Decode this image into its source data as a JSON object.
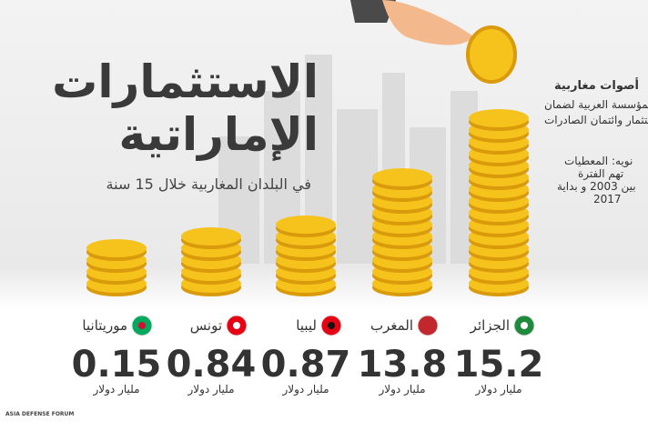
{
  "header": {
    "title_lines": [
      "الاستثمارات",
      "الإماراتية"
    ],
    "subtitle": "في البلدان المغاربية خلال 15 سنة"
  },
  "logo": "أصوات مغاربية",
  "source_lines": [
    "ر: المؤسسة العربية لضمان",
    "ستثمار وائتمان الصادرات"
  ],
  "note_lines": [
    "نويه: المعطيات",
    "تهم الفترة",
    "بين 2003 و بداية",
    "2017"
  ],
  "countries": [
    {
      "name": "الجزائر",
      "value": 15.2,
      "unit": "مليار دولار"
    },
    {
      "name": "المغرب",
      "value": 13.8,
      "unit": "مليار دولار"
    },
    {
      "name": "ليبيا",
      "value": 0.87,
      "unit": "مليار دولار"
    },
    {
      "name": "تونس",
      "value": 0.84,
      "unit": "مليار دولار"
    },
    {
      "name": "موريتانيا",
      "value": 0.15,
      "unit": "مليار دولار"
    }
  ],
  "watermark": "ASIA DEFENSE FORUM"
}
